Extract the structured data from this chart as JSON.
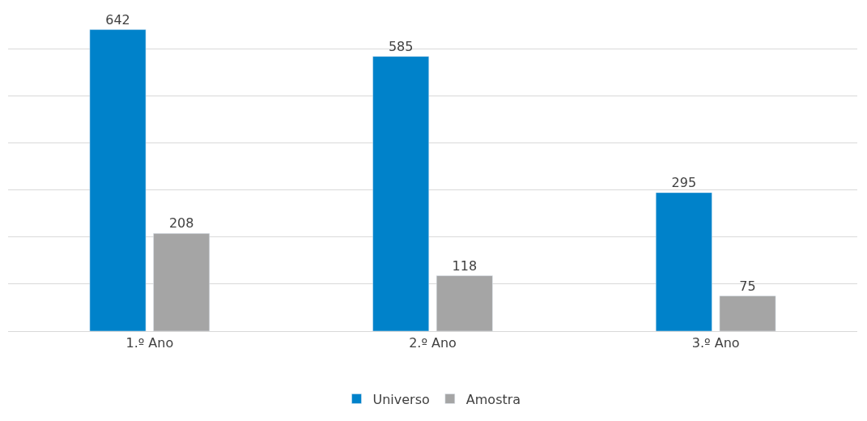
{
  "chart_data": {
    "type": "bar",
    "categories": [
      "1.º Ano",
      "2.º Ano",
      "3.º Ano"
    ],
    "series": [
      {
        "name": "Universo",
        "color": "#0082ca",
        "values": [
          642,
          585,
          295
        ]
      },
      {
        "name": "Amostra",
        "color": "#a5a5a5",
        "values": [
          208,
          118,
          75
        ]
      }
    ],
    "tick_labels": "x",
    "grid": "y",
    "legend": "bottom",
    "data_labels": true
  }
}
